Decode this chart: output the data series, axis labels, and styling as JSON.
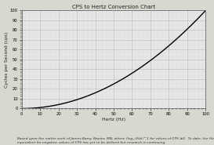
{
  "title": "CPS to Hertz Conversion Chart",
  "xlabel": "Hertz (Hz)",
  "ylabel": "Cycles per Second (cps)",
  "xlim": [
    0,
    100
  ],
  "ylim": [
    0,
    100
  ],
  "x_ticks": [
    0,
    10,
    20,
    30,
    40,
    50,
    60,
    70,
    80,
    90,
    100
  ],
  "y_ticks": [
    0,
    10,
    20,
    30,
    40,
    50,
    60,
    70,
    80,
    90,
    100
  ],
  "line_color": "#000000",
  "bg_color": "#e8e8e8",
  "grid_major_color": "#aaaaaa",
  "grid_minor_color": "#cccccc",
  "caption_line1": "Based upon the earlier work of James Barry, Baxter, MN, where (log₁₀(Hz))^1 for values of CPS ≥0.  To date, the Hz equivalent for negative values of CPS has yet to be defined but research is continuing.",
  "title_fontsize": 5.0,
  "label_fontsize": 4.2,
  "tick_fontsize": 3.8,
  "caption_fontsize": 3.2,
  "linewidth": 1.0
}
